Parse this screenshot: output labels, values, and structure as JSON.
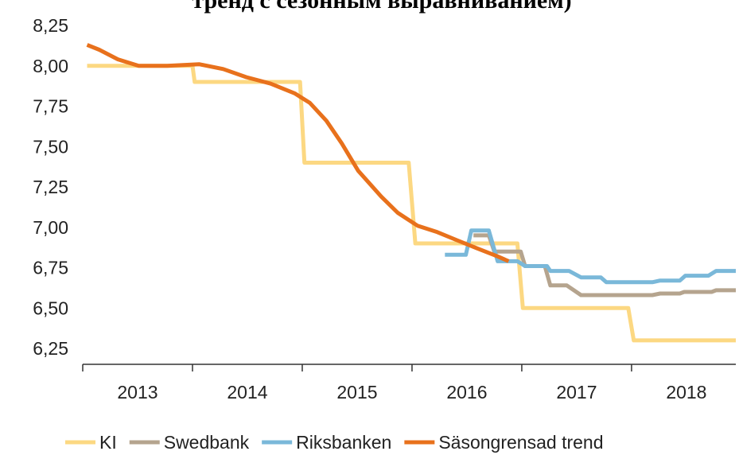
{
  "chart_data": {
    "type": "line",
    "title": "тренд с сезонным выравниванием)",
    "xlim": [
      2013,
      2018.95
    ],
    "xticks": [
      2013,
      2014,
      2015,
      2016,
      2017,
      2018
    ],
    "ylim": [
      6.25,
      8.25
    ],
    "yticks": [
      {
        "value": 6.25,
        "label": "6,25"
      },
      {
        "value": 6.5,
        "label": "6,50"
      },
      {
        "value": 6.75,
        "label": "6,75"
      },
      {
        "value": 7.0,
        "label": "7,00"
      },
      {
        "value": 7.25,
        "label": "7,25"
      },
      {
        "value": 7.5,
        "label": "7,50"
      },
      {
        "value": 7.75,
        "label": "7,75"
      },
      {
        "value": 8.0,
        "label": "8,00"
      },
      {
        "value": 8.25,
        "label": "8,25"
      }
    ],
    "legend": "bottom",
    "series": [
      {
        "name": "KI",
        "color": "#fcd882",
        "x": [
          2013.04,
          2014.0,
          2014.02,
          2014.98,
          2015.02,
          2015.97,
          2016.03,
          2016.96,
          2017.01,
          2017.97,
          2018.02,
          2018.95
        ],
        "values": [
          8.0,
          8.0,
          7.9,
          7.9,
          7.4,
          7.4,
          6.9,
          6.9,
          6.5,
          6.5,
          6.3,
          6.3
        ]
      },
      {
        "name": "Swedbank",
        "color": "#b5a48e",
        "x": [
          2016.56,
          2016.7,
          2016.75,
          2016.99,
          2017.03,
          2017.21,
          2017.26,
          2017.41,
          2017.54,
          2018.19,
          2018.26,
          2018.44,
          2018.48,
          2018.73,
          2018.77,
          2018.95
        ],
        "values": [
          6.95,
          6.95,
          6.85,
          6.85,
          6.76,
          6.76,
          6.64,
          6.64,
          6.58,
          6.58,
          6.59,
          6.59,
          6.6,
          6.6,
          6.61,
          6.61
        ]
      },
      {
        "name": "Riksbanken",
        "color": "#7ab8d9",
        "x": [
          2016.3,
          2016.49,
          2016.54,
          2016.7,
          2016.78,
          2016.96,
          2017.03,
          2017.23,
          2017.26,
          2017.43,
          2017.54,
          2017.72,
          2017.77,
          2018.19,
          2018.26,
          2018.44,
          2018.49,
          2018.7,
          2018.77,
          2018.95
        ],
        "values": [
          6.83,
          6.83,
          6.98,
          6.98,
          6.79,
          6.79,
          6.76,
          6.76,
          6.73,
          6.73,
          6.69,
          6.69,
          6.66,
          6.66,
          6.67,
          6.67,
          6.7,
          6.7,
          6.73,
          6.73
        ]
      },
      {
        "name": "Säsongrensad trend",
        "color": "#e8711c",
        "x": [
          2013.04,
          2013.15,
          2013.32,
          2013.51,
          2013.77,
          2014.06,
          2014.28,
          2014.49,
          2014.71,
          2014.93,
          2015.07,
          2015.22,
          2015.36,
          2015.51,
          2015.72,
          2015.87,
          2016.05,
          2016.23,
          2016.41,
          2016.59,
          2016.78,
          2016.88
        ],
        "values": [
          8.13,
          8.1,
          8.04,
          8.0,
          8.0,
          8.01,
          7.98,
          7.93,
          7.89,
          7.83,
          7.77,
          7.66,
          7.52,
          7.35,
          7.19,
          7.09,
          7.01,
          6.97,
          6.92,
          6.87,
          6.82,
          6.79
        ]
      }
    ]
  }
}
